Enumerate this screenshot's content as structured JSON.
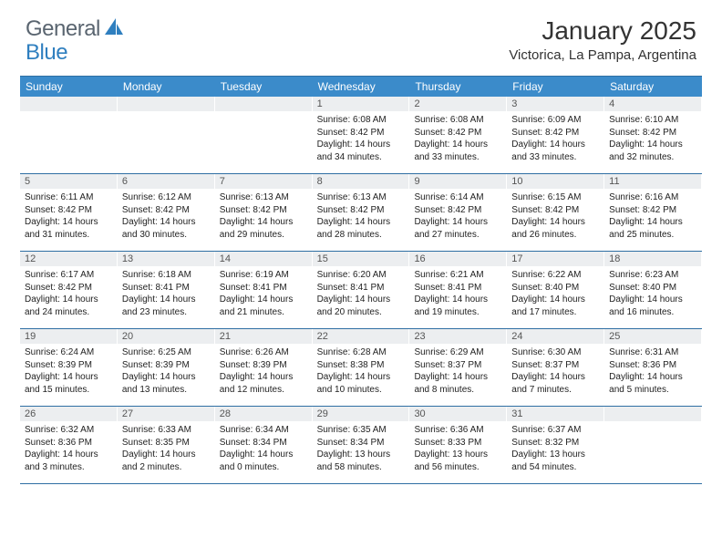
{
  "logo": {
    "text1": "General",
    "text2": "Blue",
    "shape_color": "#2f7fbf"
  },
  "title": "January 2025",
  "location": "Victorica, La Pampa, Argentina",
  "header_bg": "#3b8bca",
  "weekdays": [
    "Sunday",
    "Monday",
    "Tuesday",
    "Wednesday",
    "Thursday",
    "Friday",
    "Saturday"
  ],
  "weeks": [
    [
      {
        "num": "",
        "sunrise": "",
        "sunset": "",
        "daylight": ""
      },
      {
        "num": "",
        "sunrise": "",
        "sunset": "",
        "daylight": ""
      },
      {
        "num": "",
        "sunrise": "",
        "sunset": "",
        "daylight": ""
      },
      {
        "num": "1",
        "sunrise": "Sunrise: 6:08 AM",
        "sunset": "Sunset: 8:42 PM",
        "daylight": "Daylight: 14 hours and 34 minutes."
      },
      {
        "num": "2",
        "sunrise": "Sunrise: 6:08 AM",
        "sunset": "Sunset: 8:42 PM",
        "daylight": "Daylight: 14 hours and 33 minutes."
      },
      {
        "num": "3",
        "sunrise": "Sunrise: 6:09 AM",
        "sunset": "Sunset: 8:42 PM",
        "daylight": "Daylight: 14 hours and 33 minutes."
      },
      {
        "num": "4",
        "sunrise": "Sunrise: 6:10 AM",
        "sunset": "Sunset: 8:42 PM",
        "daylight": "Daylight: 14 hours and 32 minutes."
      }
    ],
    [
      {
        "num": "5",
        "sunrise": "Sunrise: 6:11 AM",
        "sunset": "Sunset: 8:42 PM",
        "daylight": "Daylight: 14 hours and 31 minutes."
      },
      {
        "num": "6",
        "sunrise": "Sunrise: 6:12 AM",
        "sunset": "Sunset: 8:42 PM",
        "daylight": "Daylight: 14 hours and 30 minutes."
      },
      {
        "num": "7",
        "sunrise": "Sunrise: 6:13 AM",
        "sunset": "Sunset: 8:42 PM",
        "daylight": "Daylight: 14 hours and 29 minutes."
      },
      {
        "num": "8",
        "sunrise": "Sunrise: 6:13 AM",
        "sunset": "Sunset: 8:42 PM",
        "daylight": "Daylight: 14 hours and 28 minutes."
      },
      {
        "num": "9",
        "sunrise": "Sunrise: 6:14 AM",
        "sunset": "Sunset: 8:42 PM",
        "daylight": "Daylight: 14 hours and 27 minutes."
      },
      {
        "num": "10",
        "sunrise": "Sunrise: 6:15 AM",
        "sunset": "Sunset: 8:42 PM",
        "daylight": "Daylight: 14 hours and 26 minutes."
      },
      {
        "num": "11",
        "sunrise": "Sunrise: 6:16 AM",
        "sunset": "Sunset: 8:42 PM",
        "daylight": "Daylight: 14 hours and 25 minutes."
      }
    ],
    [
      {
        "num": "12",
        "sunrise": "Sunrise: 6:17 AM",
        "sunset": "Sunset: 8:42 PM",
        "daylight": "Daylight: 14 hours and 24 minutes."
      },
      {
        "num": "13",
        "sunrise": "Sunrise: 6:18 AM",
        "sunset": "Sunset: 8:41 PM",
        "daylight": "Daylight: 14 hours and 23 minutes."
      },
      {
        "num": "14",
        "sunrise": "Sunrise: 6:19 AM",
        "sunset": "Sunset: 8:41 PM",
        "daylight": "Daylight: 14 hours and 21 minutes."
      },
      {
        "num": "15",
        "sunrise": "Sunrise: 6:20 AM",
        "sunset": "Sunset: 8:41 PM",
        "daylight": "Daylight: 14 hours and 20 minutes."
      },
      {
        "num": "16",
        "sunrise": "Sunrise: 6:21 AM",
        "sunset": "Sunset: 8:41 PM",
        "daylight": "Daylight: 14 hours and 19 minutes."
      },
      {
        "num": "17",
        "sunrise": "Sunrise: 6:22 AM",
        "sunset": "Sunset: 8:40 PM",
        "daylight": "Daylight: 14 hours and 17 minutes."
      },
      {
        "num": "18",
        "sunrise": "Sunrise: 6:23 AM",
        "sunset": "Sunset: 8:40 PM",
        "daylight": "Daylight: 14 hours and 16 minutes."
      }
    ],
    [
      {
        "num": "19",
        "sunrise": "Sunrise: 6:24 AM",
        "sunset": "Sunset: 8:39 PM",
        "daylight": "Daylight: 14 hours and 15 minutes."
      },
      {
        "num": "20",
        "sunrise": "Sunrise: 6:25 AM",
        "sunset": "Sunset: 8:39 PM",
        "daylight": "Daylight: 14 hours and 13 minutes."
      },
      {
        "num": "21",
        "sunrise": "Sunrise: 6:26 AM",
        "sunset": "Sunset: 8:39 PM",
        "daylight": "Daylight: 14 hours and 12 minutes."
      },
      {
        "num": "22",
        "sunrise": "Sunrise: 6:28 AM",
        "sunset": "Sunset: 8:38 PM",
        "daylight": "Daylight: 14 hours and 10 minutes."
      },
      {
        "num": "23",
        "sunrise": "Sunrise: 6:29 AM",
        "sunset": "Sunset: 8:37 PM",
        "daylight": "Daylight: 14 hours and 8 minutes."
      },
      {
        "num": "24",
        "sunrise": "Sunrise: 6:30 AM",
        "sunset": "Sunset: 8:37 PM",
        "daylight": "Daylight: 14 hours and 7 minutes."
      },
      {
        "num": "25",
        "sunrise": "Sunrise: 6:31 AM",
        "sunset": "Sunset: 8:36 PM",
        "daylight": "Daylight: 14 hours and 5 minutes."
      }
    ],
    [
      {
        "num": "26",
        "sunrise": "Sunrise: 6:32 AM",
        "sunset": "Sunset: 8:36 PM",
        "daylight": "Daylight: 14 hours and 3 minutes."
      },
      {
        "num": "27",
        "sunrise": "Sunrise: 6:33 AM",
        "sunset": "Sunset: 8:35 PM",
        "daylight": "Daylight: 14 hours and 2 minutes."
      },
      {
        "num": "28",
        "sunrise": "Sunrise: 6:34 AM",
        "sunset": "Sunset: 8:34 PM",
        "daylight": "Daylight: 14 hours and 0 minutes."
      },
      {
        "num": "29",
        "sunrise": "Sunrise: 6:35 AM",
        "sunset": "Sunset: 8:34 PM",
        "daylight": "Daylight: 13 hours and 58 minutes."
      },
      {
        "num": "30",
        "sunrise": "Sunrise: 6:36 AM",
        "sunset": "Sunset: 8:33 PM",
        "daylight": "Daylight: 13 hours and 56 minutes."
      },
      {
        "num": "31",
        "sunrise": "Sunrise: 6:37 AM",
        "sunset": "Sunset: 8:32 PM",
        "daylight": "Daylight: 13 hours and 54 minutes."
      },
      {
        "num": "",
        "sunrise": "",
        "sunset": "",
        "daylight": ""
      }
    ]
  ]
}
